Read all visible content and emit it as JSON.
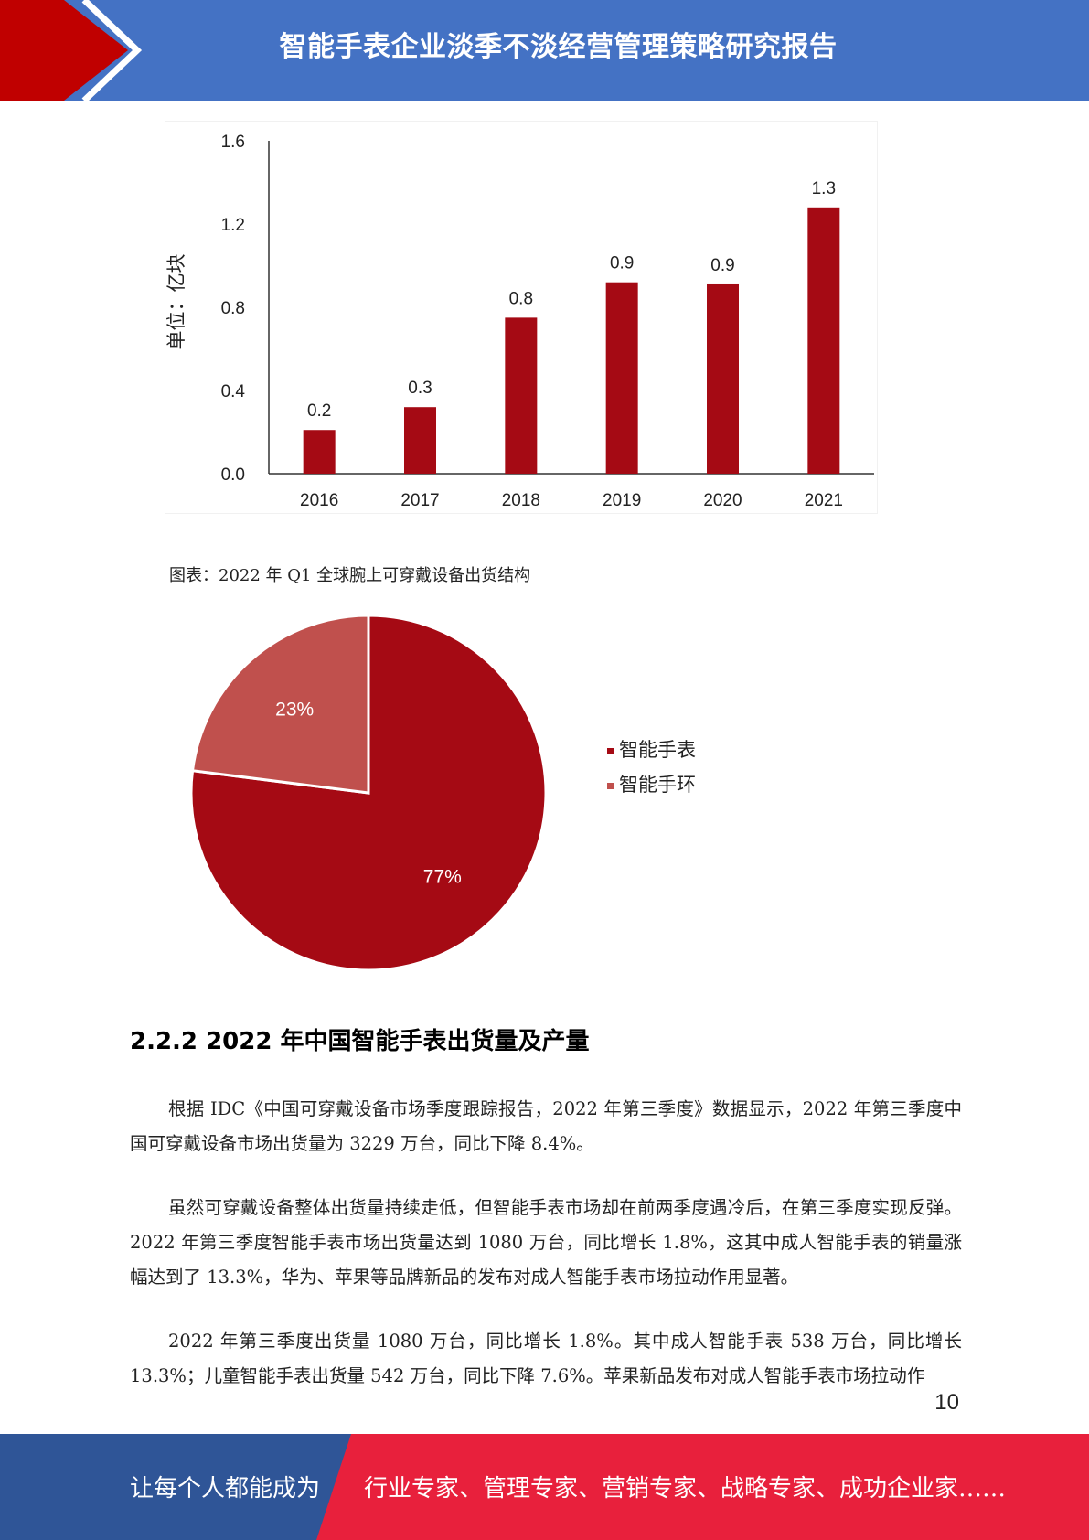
{
  "header": {
    "title": "智能手表企业淡季不淡经营管理策略研究报告",
    "colors": {
      "blue": "#4472c4",
      "red": "#c00000"
    }
  },
  "bar_chart": {
    "chart_data": {
      "type": "bar",
      "categories": [
        "2016",
        "2017",
        "2018",
        "2019",
        "2020",
        "2021"
      ],
      "values": [
        0.2,
        0.3,
        0.8,
        0.9,
        0.9,
        1.3
      ],
      "bar_heights_actual": [
        0.21,
        0.32,
        0.75,
        0.92,
        0.91,
        1.28
      ],
      "ylabel": "单位：亿块",
      "ylim": [
        0,
        1.6
      ],
      "yticks": [
        "0.0",
        "0.4",
        "0.8",
        "1.2",
        "1.6"
      ],
      "data_labels": [
        "0.2",
        "0.3",
        "0.8",
        "0.9",
        "0.9",
        "1.3"
      ],
      "color": "#a50a14",
      "grid": false
    }
  },
  "pie_caption": "图表：2022 年 Q1 全球腕上可穿戴设备出货结构",
  "pie_chart": {
    "chart_data": {
      "type": "pie",
      "labels": [
        "智能手表",
        "智能手环"
      ],
      "values": [
        77,
        23
      ],
      "slice_labels": [
        "77%",
        "23%"
      ],
      "colors": [
        "#a50a14",
        "#c0504d"
      ],
      "legend": "right"
    }
  },
  "section": {
    "heading": "2.2.2 2022 年中国智能手表出货量及产量"
  },
  "paragraphs": [
    "根据 IDC《中国可穿戴设备市场季度跟踪报告，2022 年第三季度》数据显示，2022 年第三季度中国可穿戴设备市场出货量为 3229 万台，同比下降 8.4%。",
    "虽然可穿戴设备整体出货量持续走低，但智能手表市场却在前两季度遇冷后，在第三季度实现反弹。2022 年第三季度智能手表市场出货量达到 1080 万台，同比增长 1.8%，这其中成人智能手表的销量涨幅达到了 13.3%，华为、苹果等品牌新品的发布对成人智能手表市场拉动作用显著。",
    "2022 年第三季度出货量 1080 万台，同比增长 1.8%。其中成人智能手表 538 万台，同比增长 13.3%；儿童智能手表出货量 542 万台，同比下降 7.6%。苹果新品发布对成人智能手表市场拉动作"
  ],
  "page_number": "10",
  "footer": {
    "left_text": "让每个人都能成为",
    "right_text": "行业专家、管理专家、营销专家、战略专家、成功企业家……",
    "colors": {
      "blue": "#2f5597",
      "red": "#e8203c"
    }
  }
}
